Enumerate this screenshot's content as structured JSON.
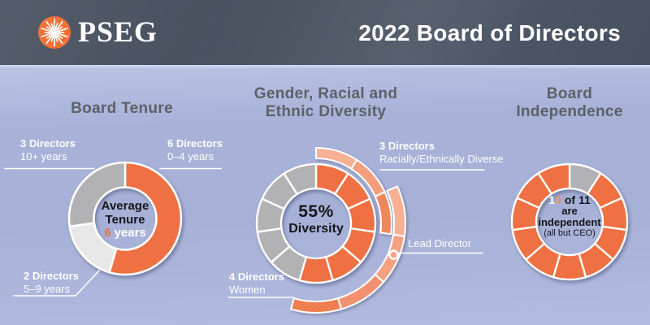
{
  "header": {
    "brand": "PSEG",
    "logo_icon": "sunburst-icon",
    "title": "2022 Board of Directors"
  },
  "palette": {
    "header_bg": "#4A5261",
    "background_top": "#BAC3E4",
    "background_bottom": "#B1BADF",
    "orange": "#EF7042",
    "gray": "#B2B2B4",
    "light_gray": "#E8E8E9",
    "logo_orange": "#F26C31",
    "heading_text": "#5C6168",
    "white": "#FFFFFF"
  },
  "chart_data": [
    {
      "type": "donut",
      "title": "Board Tenure",
      "total_directors": 11,
      "start_angle_deg": 0,
      "segments": [
        {
          "name": "0–4 years",
          "directors": 6,
          "color": "#EF7042"
        },
        {
          "name": "5–9 years",
          "directors": 2,
          "color": "#E8E8E9"
        },
        {
          "name": "10+ years",
          "directors": 3,
          "color": "#B2B2B4"
        }
      ],
      "center": {
        "line1": "Average",
        "line2": "Tenure",
        "value": "6",
        "suffix": "years"
      },
      "callouts": [
        {
          "line1": "3 Directors",
          "line2": "10+ years"
        },
        {
          "line1": "6 Directors",
          "line2": "0–4 years"
        },
        {
          "line1": "2 Directors",
          "line2": "5–9 years"
        }
      ]
    },
    {
      "type": "donut-with-outer-rings",
      "title_line1": "Gender, Racial and",
      "title_line2": "Ethnic Diversity",
      "total_directors": 11,
      "center": {
        "value": "55%",
        "label": "Diversity"
      },
      "donut_groups": [
        {
          "name": "diverse",
          "count": 6,
          "color": "#EF7042"
        },
        {
          "name": "other",
          "count": 5,
          "color": "#B2B2B4"
        }
      ],
      "rings": [
        {
          "label_line1": "3 Directors",
          "label_line2": "Racially/Ethnically Diverse",
          "count": 3,
          "colors": [
            "#F8B094",
            "#F59E7E",
            "#F0875A"
          ]
        },
        {
          "label_line1": "4 Directors",
          "label_line2": "Women",
          "count": 4,
          "colors": [
            "#F8B094",
            "#F5A182",
            "#F29070",
            "#EE7E50"
          ],
          "marker_label": "Lead Director"
        }
      ]
    },
    {
      "type": "donut",
      "title_line1": "Board",
      "title_line2": "Independence",
      "total_directors": 11,
      "start_angle_deg": 0,
      "unit_segments": [
        {
          "name": "CEO (not independent)",
          "count": 1,
          "color": "#B2B2B4"
        },
        {
          "name": "independent",
          "count": 10,
          "color": "#EF7042"
        }
      ],
      "center": {
        "digit1": "1",
        "digit0": "0",
        "rest": "of 11",
        "line2": "are",
        "line3": "independent",
        "line4": "(all but CEO)"
      }
    }
  ]
}
